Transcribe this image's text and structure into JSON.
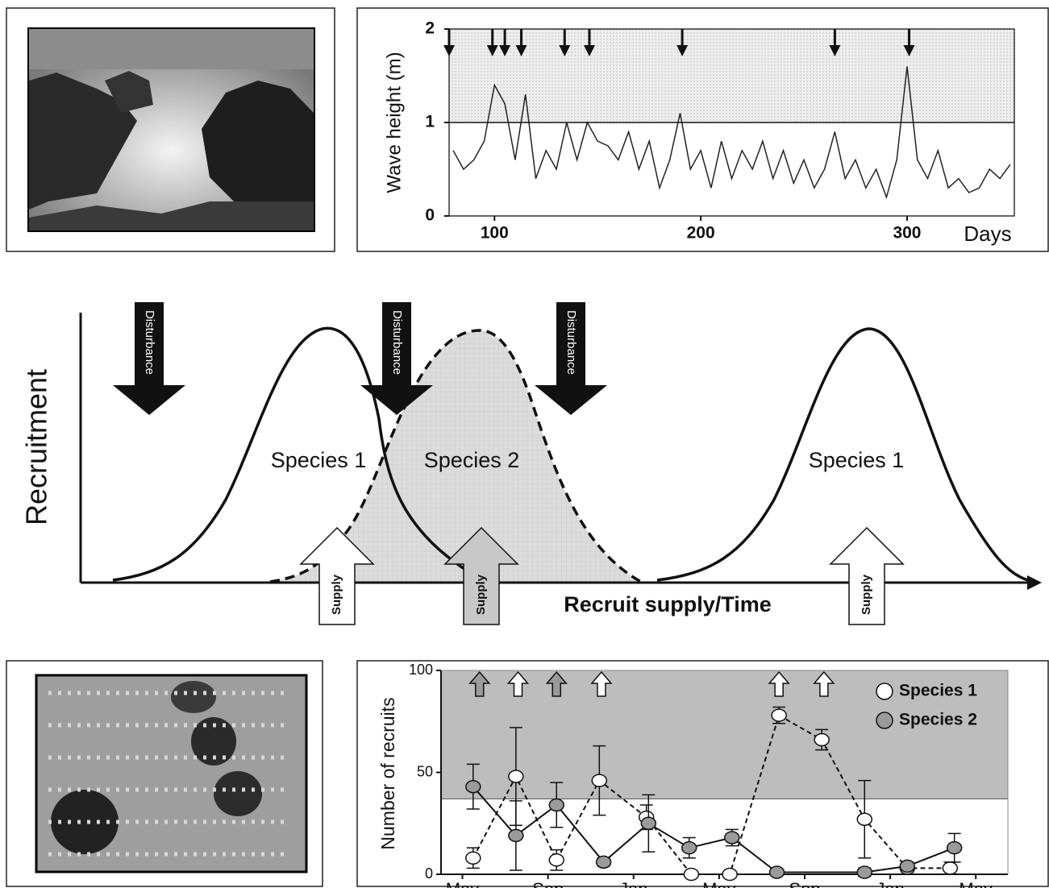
{
  "chart_data": [
    {
      "type": "line",
      "ylabel": "Wave height (m)",
      "xlabel": "Days",
      "xlim": [
        78,
        352
      ],
      "ylim": [
        0,
        2
      ],
      "xticks": [
        100,
        200,
        300
      ],
      "yticks": [
        0,
        1,
        2
      ],
      "threshold": 1,
      "disturbance_x": [
        78,
        99,
        105,
        113,
        134,
        146,
        191,
        265,
        301
      ],
      "color": "#222222",
      "x": [
        80,
        85,
        90,
        95,
        100,
        105,
        110,
        115,
        120,
        125,
        130,
        135,
        140,
        145,
        150,
        155,
        160,
        165,
        170,
        175,
        180,
        185,
        190,
        195,
        200,
        205,
        210,
        215,
        220,
        225,
        230,
        235,
        240,
        245,
        250,
        255,
        260,
        265,
        270,
        275,
        280,
        285,
        290,
        295,
        300,
        305,
        310,
        315,
        320,
        325,
        330,
        335,
        340,
        345,
        350
      ],
      "values": [
        0.7,
        0.5,
        0.6,
        0.8,
        1.4,
        1.2,
        0.6,
        1.3,
        0.4,
        0.7,
        0.5,
        1.0,
        0.6,
        1.0,
        0.8,
        0.75,
        0.6,
        0.9,
        0.5,
        0.8,
        0.3,
        0.6,
        1.1,
        0.5,
        0.7,
        0.3,
        0.8,
        0.4,
        0.7,
        0.5,
        0.8,
        0.4,
        0.7,
        0.35,
        0.6,
        0.3,
        0.5,
        0.9,
        0.4,
        0.6,
        0.3,
        0.5,
        0.2,
        0.6,
        1.6,
        0.6,
        0.4,
        0.7,
        0.3,
        0.4,
        0.25,
        0.3,
        0.5,
        0.4,
        0.55
      ]
    },
    {
      "type": "line",
      "ylabel": "Number of recruits",
      "xlim": [
        -1,
        25.5
      ],
      "ylim": [
        0,
        100
      ],
      "yticks": [
        0,
        50,
        100
      ],
      "threshold": 37,
      "xticks": [
        {
          "value": 0,
          "label": "May"
        },
        {
          "value": 4,
          "label": "Sep"
        },
        {
          "value": 8,
          "label": "Jan"
        },
        {
          "value": 12,
          "label": "May"
        },
        {
          "value": 16,
          "label": "Sep"
        },
        {
          "value": 20,
          "label": "Jan"
        },
        {
          "value": 24,
          "label": "May"
        }
      ],
      "supply_x": [
        0.8,
        2.6,
        4.4,
        6.5,
        14.8,
        16.9
      ],
      "supply_colors": [
        "#9a9a9a",
        "#ffffff",
        "#9a9a9a",
        "#ffffff",
        "#ffffff",
        "#ffffff"
      ],
      "series": [
        {
          "name": "Species 1",
          "color": "#ffffff",
          "dash": "6,4",
          "x": [
            0.5,
            2.5,
            4.4,
            6.4,
            8.6,
            10.7,
            12.5,
            14.8,
            16.8,
            18.8,
            20.8,
            22.8
          ],
          "values": [
            8,
            48,
            7,
            46,
            28,
            0,
            0,
            78,
            66,
            27,
            3,
            3
          ],
          "errors": [
            5,
            24,
            5,
            17,
            6,
            null,
            null,
            4,
            5,
            19,
            2,
            3
          ]
        },
        {
          "name": "Species 2",
          "color": "#9a9a9a",
          "dash": "none",
          "x": [
            0.5,
            2.5,
            4.4,
            6.6,
            8.7,
            10.6,
            12.6,
            14.7,
            18.8,
            20.8,
            23.0
          ],
          "values": [
            43,
            19,
            34,
            6,
            25,
            13,
            18,
            1,
            1,
            4,
            13
          ],
          "errors": [
            11,
            17,
            11,
            2,
            14,
            5,
            4,
            null,
            2,
            2,
            7
          ]
        }
      ]
    }
  ],
  "diagram": {
    "ylabel": "Recruitment",
    "xlabel": "Recruit supply/Time",
    "disturbance_labels": [
      "Disturbance",
      "Disturbance",
      "Disturbance"
    ],
    "species_labels": [
      "Species 1",
      "Species 2",
      "Species 1"
    ],
    "supply_labels": [
      "Supply",
      "Supply",
      "Supply"
    ]
  }
}
